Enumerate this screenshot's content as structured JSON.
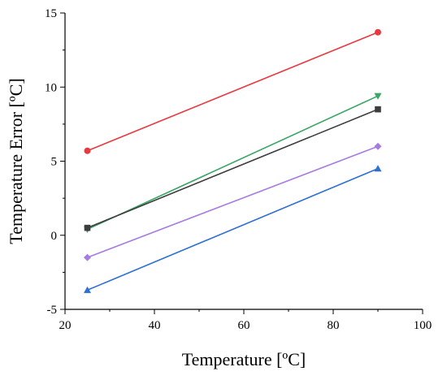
{
  "chart_data": {
    "type": "line",
    "xlabel": "Temperature [ºC]",
    "ylabel": "Temperature Error [ºC]",
    "xlim": [
      20,
      100
    ],
    "ylim": [
      -5,
      15
    ],
    "x_ticks": [
      20,
      40,
      60,
      80,
      100
    ],
    "y_ticks": [
      -5,
      0,
      5,
      10,
      15
    ],
    "x_tick_labels": [
      "20",
      "40",
      "60",
      "80",
      "100"
    ],
    "y_tick_labels": [
      "-5",
      "0",
      "5",
      "10",
      "15"
    ],
    "grid": false,
    "series": [
      {
        "x": [
          25,
          90
        ],
        "y": [
          5.7,
          13.7
        ],
        "color": "#e8393f",
        "marker": "circle"
      },
      {
        "x": [
          25,
          90
        ],
        "y": [
          0.4,
          9.4
        ],
        "color": "#3aa565",
        "marker": "triangle-down"
      },
      {
        "x": [
          25,
          90
        ],
        "y": [
          0.5,
          8.5
        ],
        "color": "#3d3d3d",
        "marker": "square"
      },
      {
        "x": [
          25,
          90
        ],
        "y": [
          -1.5,
          6.0
        ],
        "color": "#a77be0",
        "marker": "diamond"
      },
      {
        "x": [
          25,
          90
        ],
        "y": [
          -3.7,
          4.5
        ],
        "color": "#2d6fd3",
        "marker": "triangle-up"
      }
    ]
  }
}
